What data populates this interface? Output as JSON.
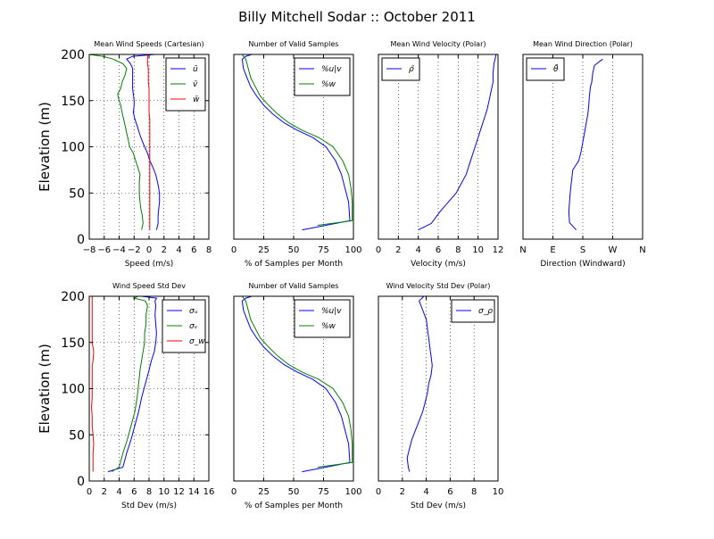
{
  "figure": {
    "title": "Billy Mitchell Sodar :: October 2011"
  },
  "colors": {
    "blue": "#0000ff",
    "green": "#008000",
    "red": "#ff0000",
    "axes": "#000000",
    "grid": "#000000"
  },
  "chart_data": [
    {
      "id": "p1",
      "type": "line",
      "title": "Mean Wind Speeds (Cartesian)",
      "xlabel": "Speed (m/s)",
      "ylabel": "Elevation (m)",
      "xlim": [
        -8,
        8
      ],
      "ylim": [
        0,
        200
      ],
      "xticks": [
        -8,
        -6,
        -4,
        -2,
        0,
        2,
        4,
        6,
        8
      ],
      "xtick_labels": [
        "−8",
        "−6",
        "−4",
        "−2",
        "0",
        "2",
        "4",
        "6",
        "8"
      ],
      "yticks": [
        0,
        50,
        100,
        150,
        200
      ],
      "ytick_labels": [
        "0",
        "50",
        "100",
        "150",
        "200"
      ],
      "grid": true,
      "legend": "top-right",
      "series": [
        {
          "name": "ū",
          "color": "blue",
          "x": [
            1,
            1.2,
            1.2,
            1.3,
            1.4,
            1.4,
            1.3,
            1.1,
            0.9,
            0.5,
            0.1,
            -0.2,
            -0.6,
            -1.0,
            -1.3,
            -1.6,
            -1.9,
            -2.1,
            -2.0,
            -2.0,
            -2.1,
            -2.2,
            -2.2,
            -2.2,
            -2.2,
            -2.5,
            -3.0,
            -2.2,
            0.8
          ],
          "y": [
            10,
            17,
            25,
            33,
            40,
            48,
            55,
            63,
            70,
            78,
            85,
            93,
            100,
            108,
            115,
            123,
            130,
            137,
            145,
            150,
            157,
            163,
            170,
            178,
            185,
            190,
            195,
            198,
            200
          ]
        },
        {
          "name": "v̄",
          "color": "green",
          "x": [
            -1.0,
            -0.8,
            -0.9,
            -1.1,
            -1.2,
            -1.3,
            -1.3,
            -1.3,
            -1.2,
            -1.5,
            -1.8,
            -2.1,
            -2.6,
            -2.8,
            -3.0,
            -3.2,
            -3.4,
            -3.6,
            -3.8,
            -4.0,
            -4.2,
            -3.8,
            -3.6,
            -3.2,
            -3.0,
            -3.5,
            -4.8,
            -6.2,
            -8.0
          ],
          "y": [
            10,
            17,
            25,
            33,
            40,
            48,
            55,
            63,
            70,
            78,
            85,
            93,
            100,
            108,
            115,
            123,
            130,
            137,
            145,
            150,
            157,
            163,
            170,
            178,
            185,
            190,
            195,
            198,
            200
          ]
        },
        {
          "name": "w̄",
          "color": "red",
          "x": [
            0.1,
            0.1,
            0.1,
            0.1,
            0.1,
            0.1,
            0.1,
            0.1,
            0.1,
            0.1,
            0.1,
            0.1,
            0.1,
            0.1,
            0.1,
            0.1,
            0.1,
            0.0,
            0.0,
            0.0,
            0.0,
            0.0,
            -0.1,
            -0.1,
            -0.1,
            -0.2,
            -0.2,
            -0.2,
            -0.2
          ],
          "y": [
            10,
            17,
            25,
            33,
            40,
            48,
            55,
            63,
            70,
            78,
            85,
            93,
            100,
            108,
            115,
            123,
            130,
            137,
            145,
            150,
            157,
            163,
            170,
            178,
            185,
            190,
            195,
            198,
            200
          ]
        }
      ]
    },
    {
      "id": "p2",
      "type": "line",
      "title": "Number of Valid Samples",
      "xlabel": "% of Samples per Month",
      "ylabel": "",
      "xlim": [
        0,
        100
      ],
      "ylim": [
        0,
        200
      ],
      "xticks": [
        0,
        25,
        50,
        75,
        100
      ],
      "xtick_labels": [
        "0",
        "25",
        "50",
        "75",
        "100"
      ],
      "yticks": [],
      "ytick_labels": [],
      "grid": true,
      "legend": "top-right",
      "series": [
        {
          "name": "%u|v",
          "color": "blue",
          "x": [
            57,
            97,
            96,
            93,
            90,
            85,
            77,
            66,
            53,
            42,
            33,
            25,
            19,
            14,
            11,
            8,
            7,
            10,
            15,
            26
          ],
          "y": [
            10,
            20,
            40,
            55,
            70,
            85,
            100,
            110,
            118,
            126,
            135,
            145,
            155,
            165,
            175,
            185,
            195,
            198,
            200,
            200
          ]
        },
        {
          "name": "%w",
          "color": "green",
          "x": [
            70,
            99,
            99,
            98,
            96,
            91,
            83,
            71,
            57,
            46,
            37,
            29,
            22,
            18,
            14,
            12,
            10,
            8,
            7,
            5
          ],
          "y": [
            15,
            20,
            40,
            55,
            70,
            85,
            100,
            110,
            118,
            126,
            135,
            145,
            155,
            165,
            175,
            185,
            195,
            198,
            200,
            200
          ]
        }
      ]
    },
    {
      "id": "p3",
      "type": "line",
      "title": "Mean Wind Velocity (Polar)",
      "xlabel": "Velocity (m/s)",
      "ylabel": "",
      "xlim": [
        0,
        12
      ],
      "ylim": [
        0,
        200
      ],
      "xticks": [
        0,
        2,
        4,
        6,
        8,
        10,
        12
      ],
      "xtick_labels": [
        "0",
        "2",
        "4",
        "6",
        "8",
        "10",
        "12"
      ],
      "yticks": [],
      "ytick_labels": [],
      "grid": true,
      "legend": "top-left",
      "series": [
        {
          "name": "ρ̄",
          "color": "blue",
          "x": [
            4.0,
            5.3,
            6.2,
            7.0,
            7.8,
            8.3,
            8.8,
            9.1,
            9.4,
            9.7,
            10.0,
            10.3,
            10.6,
            10.9,
            11.1,
            11.3,
            11.5,
            11.5,
            11.6,
            11.8
          ],
          "y": [
            10,
            17,
            30,
            40,
            50,
            60,
            70,
            80,
            90,
            100,
            110,
            120,
            130,
            140,
            150,
            160,
            170,
            180,
            190,
            200
          ]
        }
      ]
    },
    {
      "id": "p4",
      "type": "line",
      "title": "Mean Wind Direction (Polar)",
      "xlabel": "Direction (Windward)",
      "ylabel": "",
      "xlim": [
        0,
        360
      ],
      "ylim": [
        0,
        200
      ],
      "xticks": [
        0,
        90,
        180,
        270,
        360
      ],
      "xtick_labels": [
        "N",
        "E",
        "S",
        "W",
        "N"
      ],
      "yticks": [],
      "ytick_labels": [],
      "grid": true,
      "legend": "top-left",
      "series": [
        {
          "name": "θ̄",
          "color": "blue",
          "x": [
            160,
            140,
            138,
            140,
            142,
            145,
            150,
            168,
            175,
            180,
            185,
            190,
            195,
            198,
            200,
            203,
            207,
            210,
            215,
            240
          ],
          "y": [
            10,
            18,
            30,
            40,
            50,
            60,
            75,
            85,
            95,
            105,
            115,
            125,
            135,
            145,
            155,
            165,
            170,
            180,
            188,
            195
          ]
        }
      ]
    },
    {
      "id": "p5",
      "type": "line",
      "title": "Wind Speed Std Dev",
      "xlabel": "Std Dev (m/s)",
      "ylabel": "Elevation (m)",
      "xlim": [
        0,
        16
      ],
      "ylim": [
        0,
        200
      ],
      "xticks": [
        0,
        2,
        4,
        6,
        8,
        10,
        12,
        14,
        16
      ],
      "xtick_labels": [
        "0",
        "2",
        "4",
        "6",
        "8",
        "10",
        "12",
        "14",
        "16"
      ],
      "yticks": [
        0,
        50,
        100,
        150,
        200
      ],
      "ytick_labels": [
        "0",
        "50",
        "100",
        "150",
        "200"
      ],
      "grid": true,
      "legend": "top-right",
      "series": [
        {
          "name": "σᵤ",
          "color": "blue",
          "x": [
            2.5,
            4.5,
            5.0,
            5.6,
            6.1,
            6.6,
            7.0,
            7.5,
            8.0,
            8.3,
            8.7,
            8.9,
            9.0,
            8.9,
            8.8,
            8.9,
            8.8,
            9.0,
            7.0,
            7.2,
            8.5
          ],
          "y": [
            10,
            15,
            30,
            45,
            60,
            75,
            90,
            105,
            120,
            130,
            140,
            150,
            160,
            170,
            180,
            190,
            195,
            198,
            200,
            200,
            200
          ]
        },
        {
          "name": "σᵥ",
          "color": "green",
          "x": [
            3.0,
            4.0,
            4.5,
            5.1,
            5.6,
            6.1,
            6.4,
            6.6,
            6.8,
            7.0,
            7.2,
            7.4,
            7.4,
            7.6,
            7.6,
            7.8,
            7.5,
            6.0,
            6.5
          ],
          "y": [
            10,
            15,
            30,
            45,
            60,
            75,
            90,
            105,
            120,
            130,
            140,
            150,
            160,
            170,
            180,
            190,
            195,
            198,
            200
          ]
        },
        {
          "name": "σ_w",
          "color": "red",
          "x": [
            0.5,
            0.5,
            0.5,
            0.6,
            0.5,
            0.4,
            0.4,
            0.3,
            0.4,
            0.4,
            0.4,
            0.4,
            0.4,
            0.5,
            0.6,
            0.4,
            0.4,
            0.4,
            0.4,
            0.4,
            0.4,
            0.4
          ],
          "y": [
            10,
            20,
            30,
            40,
            50,
            60,
            70,
            80,
            90,
            100,
            110,
            120,
            125,
            130,
            140,
            150,
            160,
            170,
            180,
            190,
            195,
            200
          ]
        }
      ]
    },
    {
      "id": "p6",
      "type": "line",
      "title": "Number of Valid Samples",
      "xlabel": "% of Samples per Month",
      "ylabel": "",
      "xlim": [
        0,
        100
      ],
      "ylim": [
        0,
        200
      ],
      "xticks": [
        0,
        25,
        50,
        75,
        100
      ],
      "xtick_labels": [
        "0",
        "25",
        "50",
        "75",
        "100"
      ],
      "yticks": [],
      "ytick_labels": [],
      "grid": true,
      "legend": "top-right",
      "series": [
        {
          "name": "%u|v",
          "color": "blue",
          "x": [
            57,
            97,
            96,
            93,
            90,
            85,
            77,
            66,
            53,
            42,
            33,
            25,
            19,
            14,
            11,
            8,
            7,
            10,
            15,
            26
          ],
          "y": [
            10,
            20,
            40,
            55,
            70,
            85,
            100,
            110,
            118,
            126,
            135,
            145,
            155,
            165,
            175,
            185,
            195,
            198,
            200,
            200
          ]
        },
        {
          "name": "%w",
          "color": "green",
          "x": [
            70,
            99,
            99,
            98,
            96,
            91,
            83,
            71,
            57,
            46,
            37,
            29,
            22,
            18,
            14,
            12,
            10,
            8,
            7,
            5
          ],
          "y": [
            15,
            20,
            40,
            55,
            70,
            85,
            100,
            110,
            118,
            126,
            135,
            145,
            155,
            165,
            175,
            185,
            195,
            198,
            200,
            200
          ]
        }
      ]
    },
    {
      "id": "p7",
      "type": "line",
      "title": "Wind Velocity Std Dev (Polar)",
      "xlabel": "Std Dev (m/s)",
      "ylabel": "",
      "xlim": [
        0,
        10
      ],
      "ylim": [
        0,
        200
      ],
      "xticks": [
        0,
        2,
        4,
        6,
        8,
        10
      ],
      "xtick_labels": [
        "0",
        "2",
        "4",
        "6",
        "8",
        "10"
      ],
      "yticks": [],
      "ytick_labels": [],
      "grid": true,
      "legend": "top-right",
      "series": [
        {
          "name": "σ_ρ",
          "color": "blue",
          "x": [
            2.6,
            2.5,
            2.4,
            2.6,
            2.8,
            3.1,
            3.4,
            3.7,
            3.9,
            4.1,
            4.2,
            4.4,
            4.5,
            4.4,
            4.3,
            4.2,
            4.1,
            4.0,
            3.7,
            3.4,
            3.8
          ],
          "y": [
            10,
            15,
            25,
            35,
            45,
            55,
            65,
            75,
            85,
            95,
            105,
            115,
            125,
            135,
            145,
            155,
            165,
            175,
            185,
            195,
            200
          ]
        }
      ]
    }
  ]
}
